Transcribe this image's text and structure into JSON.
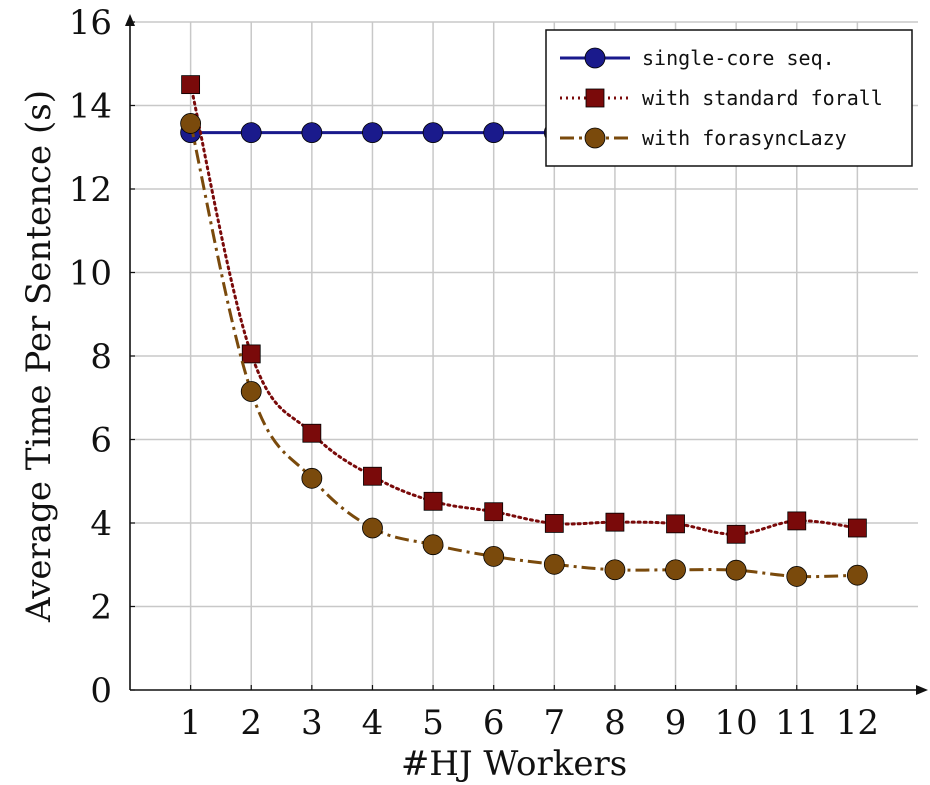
{
  "chart_data": {
    "type": "line",
    "xlabel": "#HJ Workers",
    "ylabel": "Average Time Per Sentence (s)",
    "x": [
      1,
      2,
      3,
      4,
      5,
      6,
      7,
      8,
      9,
      10,
      11,
      12
    ],
    "xlim": [
      0,
      13
    ],
    "ylim": [
      0,
      16
    ],
    "xticks": [
      1,
      2,
      3,
      4,
      5,
      6,
      7,
      8,
      9,
      10,
      11,
      12
    ],
    "yticks": [
      0,
      2,
      4,
      6,
      8,
      10,
      12,
      14,
      16
    ],
    "grid": true,
    "legend_position": "top-right",
    "series": [
      {
        "name": "single-core seq.",
        "color": "#1a1a8c",
        "marker": "circle",
        "line_style": "solid",
        "values": [
          13.35,
          13.35,
          13.35,
          13.35,
          13.35,
          13.35,
          13.35,
          13.35,
          13.35,
          13.35,
          13.35,
          13.35
        ]
      },
      {
        "name": "with standard forall",
        "color": "#7a0a0a",
        "marker": "square",
        "line_style": "dotted",
        "values": [
          14.5,
          8.05,
          6.15,
          5.12,
          4.52,
          4.27,
          3.99,
          4.02,
          3.98,
          3.73,
          4.05,
          3.88
        ]
      },
      {
        "name": "with forasyncLazy",
        "color": "#7a4a0c",
        "marker": "circle",
        "line_style": "dashdot",
        "values": [
          13.57,
          7.15,
          5.07,
          3.88,
          3.48,
          3.2,
          3.01,
          2.88,
          2.88,
          2.87,
          2.72,
          2.75
        ]
      }
    ]
  }
}
